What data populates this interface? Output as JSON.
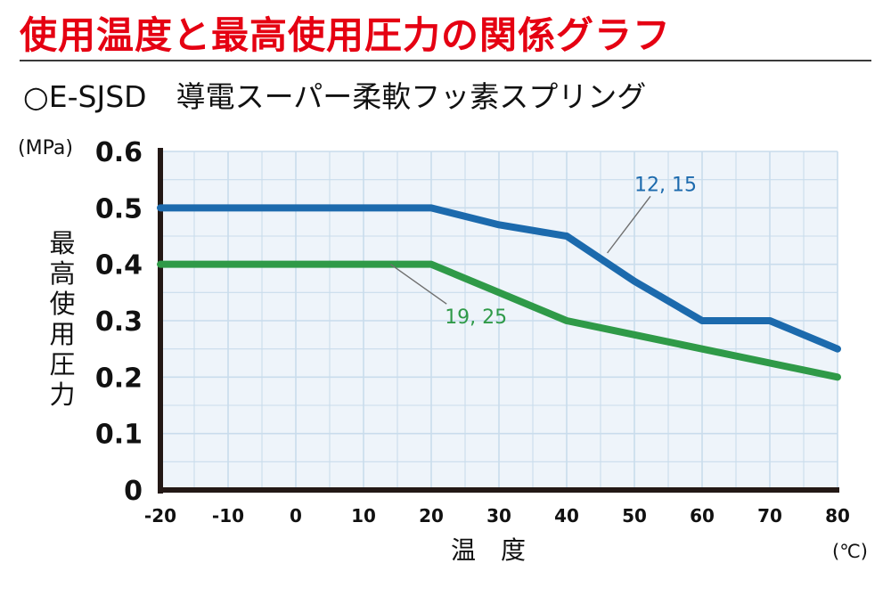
{
  "page": {
    "title": "使用温度と最高使用圧力の関係グラフ",
    "subtitle": "○E-SJSD　導電スーパー柔軟フッ素スプリング"
  },
  "colors": {
    "title": "#e50012",
    "blue_series": "#1c6aad",
    "green_series": "#2f9a48",
    "grid": "#c9dcec",
    "plot_bg": "#eef4fa",
    "axis": "#231815"
  },
  "chart_data": {
    "type": "line",
    "title": "",
    "xlabel": "温　度",
    "xunit": "(℃)",
    "ylabel": "最高使用圧力",
    "yunit": "(MPa)",
    "xlim": [
      -20,
      80
    ],
    "ylim": [
      0,
      0.6
    ],
    "xticks": [
      "-20",
      "-10",
      "0",
      "10",
      "20",
      "30",
      "40",
      "50",
      "60",
      "70",
      "80"
    ],
    "xtick_values": [
      -20,
      -10,
      0,
      10,
      20,
      30,
      40,
      50,
      60,
      70,
      80
    ],
    "yticks": [
      "0",
      "0.1",
      "0.2",
      "0.3",
      "0.4",
      "0.5",
      "0.6"
    ],
    "ytick_values": [
      0,
      0.1,
      0.2,
      0.3,
      0.4,
      0.5,
      0.6
    ],
    "grid": true,
    "series": [
      {
        "name": "12, 15",
        "color": "#1c6aad",
        "x": [
          -20,
          20,
          30,
          40,
          50,
          60,
          70,
          80
        ],
        "y": [
          0.5,
          0.5,
          0.47,
          0.45,
          0.37,
          0.3,
          0.3,
          0.25
        ],
        "label_at": [
          50,
          0.53
        ],
        "leader_to": [
          46,
          0.42
        ]
      },
      {
        "name": "19, 25",
        "color": "#2f9a48",
        "x": [
          -20,
          20,
          30,
          40,
          50,
          60,
          70,
          80
        ],
        "y": [
          0.4,
          0.4,
          0.35,
          0.3,
          0.275,
          0.25,
          0.225,
          0.2
        ],
        "label_at": [
          22,
          0.295
        ],
        "leader_to": [
          14,
          0.4
        ]
      }
    ]
  }
}
